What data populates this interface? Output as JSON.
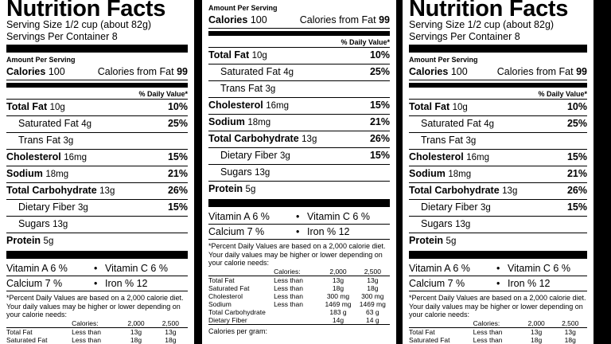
{
  "label": {
    "title": "Nutrition Facts",
    "serving_size": "Serving Size 1/2 cup (about 82g)",
    "servings": "Servings Per Container 8",
    "amount_per_serving": "Amount Per Serving",
    "calories_label": "Calories",
    "calories_value": "100",
    "calories_fat_label": "Calories from Fat",
    "calories_fat_value": "99",
    "daily_value_header": "% Daily Value*",
    "nutrients": [
      {
        "name": "Total Fat",
        "amount": "10g",
        "dv": "10%"
      },
      {
        "name": "Saturated Fat",
        "amount": "4g",
        "dv": "25%"
      },
      {
        "name": "Trans Fat",
        "amount": "3g",
        "dv": ""
      },
      {
        "name": "Cholesterol",
        "amount": "16mg",
        "dv": "15%"
      },
      {
        "name": "Sodium",
        "amount": "18mg",
        "dv": "21%"
      },
      {
        "name": "Total Carbohydrate",
        "amount": "13g",
        "dv": "26%"
      },
      {
        "name": "Dietary Fiber",
        "amount": "3g",
        "dv": "15%"
      },
      {
        "name": "Sugars",
        "amount": "13g",
        "dv": ""
      },
      {
        "name": "Protein",
        "amount": "5g",
        "dv": ""
      }
    ],
    "vitamin_a": "Vitamin A  6 %",
    "vitamin_c": "Vitamin C 6 %",
    "calcium": "Calcium  7 %",
    "iron": "Iron   % 12",
    "bullet": "•",
    "footnote": "*Percent Daily Values are based on a 2,000 calorie diet. Your daily values may be higher or lower depending on your calorie needs:",
    "table_header": {
      "label": "Calories:",
      "c2000": "2,000",
      "c2500": "2,500"
    },
    "table_rows": [
      {
        "name": "Total Fat",
        "limit": "Less than",
        "v1": "13g",
        "v2": "13g"
      },
      {
        "name": "Saturated Fat",
        "limit": "Less than",
        "v1": "18g",
        "v2": "18g"
      },
      {
        "name": "Cholesterol",
        "limit": "Less than",
        "v1": "300 mg",
        "v2": "300 mg"
      },
      {
        "name": "Sodium",
        "limit": "Less than",
        "v1": "1469 mg",
        "v2": "1469 mg"
      },
      {
        "name": "Total Carbohydrate",
        "limit": "",
        "v1": "183 g",
        "v2": "63 g"
      },
      {
        "name": "Dietary Fiber",
        "limit": "",
        "v1": "14g",
        "v2": "14 g"
      }
    ],
    "calories_per_gram": "Calories per gram:"
  }
}
